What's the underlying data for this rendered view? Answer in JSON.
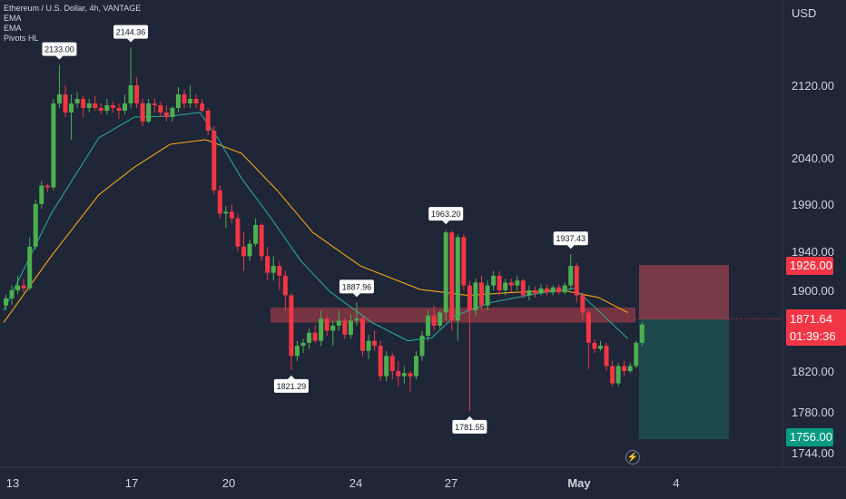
{
  "legend": {
    "symbol": "Ethereum / U.S. Dollar, 4h, VANTAGE",
    "indicators": [
      "EMA",
      "EMA",
      "Pivots HL"
    ]
  },
  "axis": {
    "currency": "USD",
    "y_ticks": [
      "2120.00",
      "2040.00",
      "1990.00",
      "1940.00",
      "1900.00",
      "1820.00",
      "1780.00",
      "1744.00"
    ],
    "x_ticks": [
      "13",
      "17",
      "20",
      "24",
      "27",
      "May",
      "4"
    ]
  },
  "price_labels": {
    "stop": "1926.00",
    "target": "1756.00",
    "current": "1871.64",
    "countdown": "01:39:36"
  },
  "colors": {
    "background": "#1e2637",
    "up": "#4caf50",
    "down": "#f23645",
    "ema_fast": "#26a69a",
    "ema_slow": "#f7a21b",
    "zone": "#e0474f",
    "stop_box": "#7d3a47",
    "target_box": "#1f4b4e"
  },
  "chart_data": {
    "type": "candlestick",
    "title": "Ethereum / U.S. Dollar, 4h, VANTAGE",
    "ylabel": "USD",
    "ylim": [
      1738,
      2160
    ],
    "x_labels": [
      "13",
      "17",
      "20",
      "24",
      "27",
      "May",
      "4"
    ],
    "y_ticks": [
      2120,
      2040,
      1990,
      1940,
      1900,
      1820,
      1780,
      1744
    ],
    "ohlc": [
      [
        1885,
        1896,
        1880,
        1892
      ],
      [
        1892,
        1905,
        1886,
        1900
      ],
      [
        1900,
        1915,
        1896,
        1905
      ],
      [
        1905,
        1912,
        1898,
        1902
      ],
      [
        1902,
        1955,
        1900,
        1945
      ],
      [
        1945,
        1995,
        1942,
        1990
      ],
      [
        1990,
        2015,
        1985,
        2010
      ],
      [
        2010,
        2012,
        2003,
        2008
      ],
      [
        2008,
        2105,
        2005,
        2100
      ],
      [
        2100,
        2133,
        2095,
        2110
      ],
      [
        2110,
        2120,
        2085,
        2090
      ],
      [
        2090,
        2110,
        2060,
        2100
      ],
      [
        2100,
        2112,
        2095,
        2105
      ],
      [
        2105,
        2108,
        2085,
        2095
      ],
      [
        2095,
        2105,
        2090,
        2100
      ],
      [
        2100,
        2108,
        2092,
        2095
      ],
      [
        2095,
        2100,
        2088,
        2092
      ],
      [
        2092,
        2105,
        2088,
        2098
      ],
      [
        2098,
        2102,
        2090,
        2095
      ],
      [
        2095,
        2100,
        2083,
        2092
      ],
      [
        2092,
        2110,
        2088,
        2100
      ],
      [
        2100,
        2144,
        2095,
        2120
      ],
      [
        2120,
        2125,
        2095,
        2100
      ],
      [
        2100,
        2105,
        2075,
        2080
      ],
      [
        2080,
        2105,
        2078,
        2100
      ],
      [
        2100,
        2106,
        2090,
        2098
      ],
      [
        2098,
        2102,
        2085,
        2090
      ],
      [
        2090,
        2098,
        2080,
        2085
      ],
      [
        2085,
        2097,
        2080,
        2095
      ],
      [
        2095,
        2118,
        2090,
        2110
      ],
      [
        2110,
        2115,
        2095,
        2100
      ],
      [
        2100,
        2120,
        2095,
        2105
      ],
      [
        2105,
        2110,
        2095,
        2100
      ],
      [
        2100,
        2105,
        2090,
        2092
      ],
      [
        2092,
        2095,
        2065,
        2070
      ],
      [
        2070,
        2075,
        2000,
        2005
      ],
      [
        2005,
        2010,
        1975,
        1980
      ],
      [
        1980,
        1988,
        1965,
        1982
      ],
      [
        1982,
        1990,
        1970,
        1975
      ],
      [
        1975,
        1980,
        1940,
        1945
      ],
      [
        1945,
        1960,
        1920,
        1935
      ],
      [
        1935,
        1952,
        1930,
        1948
      ],
      [
        1948,
        1975,
        1945,
        1968
      ],
      [
        1968,
        1970,
        1930,
        1935
      ],
      [
        1935,
        1945,
        1910,
        1918
      ],
      [
        1918,
        1935,
        1910,
        1925
      ],
      [
        1925,
        1930,
        1900,
        1915
      ],
      [
        1915,
        1920,
        1880,
        1895
      ],
      [
        1895,
        1897,
        1821,
        1835
      ],
      [
        1835,
        1850,
        1830,
        1845
      ],
      [
        1845,
        1852,
        1838,
        1848
      ],
      [
        1848,
        1862,
        1842,
        1858
      ],
      [
        1858,
        1866,
        1848,
        1850
      ],
      [
        1850,
        1880,
        1845,
        1872
      ],
      [
        1872,
        1876,
        1855,
        1860
      ],
      [
        1860,
        1870,
        1845,
        1865
      ],
      [
        1865,
        1880,
        1860,
        1870
      ],
      [
        1870,
        1872,
        1852,
        1856
      ],
      [
        1856,
        1876,
        1852,
        1870
      ],
      [
        1870,
        1888,
        1865,
        1872
      ],
      [
        1872,
        1875,
        1835,
        1840
      ],
      [
        1840,
        1856,
        1832,
        1850
      ],
      [
        1850,
        1860,
        1840,
        1845
      ],
      [
        1845,
        1850,
        1810,
        1815
      ],
      [
        1815,
        1840,
        1810,
        1835
      ],
      [
        1835,
        1838,
        1812,
        1820
      ],
      [
        1820,
        1830,
        1805,
        1815
      ],
      [
        1815,
        1825,
        1808,
        1818
      ],
      [
        1818,
        1820,
        1800,
        1815
      ],
      [
        1815,
        1840,
        1812,
        1835
      ],
      [
        1835,
        1860,
        1830,
        1855
      ],
      [
        1855,
        1880,
        1850,
        1875
      ],
      [
        1875,
        1885,
        1860,
        1865
      ],
      [
        1865,
        1880,
        1862,
        1878
      ],
      [
        1878,
        1963,
        1870,
        1960
      ],
      [
        1960,
        1962,
        1860,
        1870
      ],
      [
        1870,
        1958,
        1850,
        1955
      ],
      [
        1955,
        1958,
        1900,
        1905
      ],
      [
        1905,
        1910,
        1781,
        1880
      ],
      [
        1880,
        1912,
        1875,
        1908
      ],
      [
        1908,
        1915,
        1880,
        1885
      ],
      [
        1885,
        1910,
        1880,
        1905
      ],
      [
        1905,
        1920,
        1900,
        1915
      ],
      [
        1915,
        1920,
        1895,
        1900
      ],
      [
        1900,
        1912,
        1895,
        1908
      ],
      [
        1908,
        1912,
        1898,
        1905
      ],
      [
        1905,
        1915,
        1900,
        1910
      ],
      [
        1910,
        1912,
        1892,
        1895
      ],
      [
        1895,
        1905,
        1890,
        1900
      ],
      [
        1900,
        1904,
        1893,
        1897
      ],
      [
        1897,
        1906,
        1895,
        1902
      ],
      [
        1902,
        1906,
        1895,
        1898
      ],
      [
        1898,
        1905,
        1895,
        1903
      ],
      [
        1903,
        1906,
        1896,
        1898
      ],
      [
        1898,
        1908,
        1896,
        1905
      ],
      [
        1905,
        1937,
        1900,
        1925
      ],
      [
        1925,
        1928,
        1888,
        1895
      ],
      [
        1895,
        1898,
        1870,
        1878
      ],
      [
        1878,
        1880,
        1822,
        1848
      ],
      [
        1848,
        1852,
        1838,
        1842
      ],
      [
        1842,
        1850,
        1840,
        1845
      ],
      [
        1845,
        1848,
        1820,
        1825
      ],
      [
        1825,
        1830,
        1805,
        1808
      ],
      [
        1808,
        1828,
        1805,
        1825
      ],
      [
        1825,
        1830,
        1815,
        1820
      ],
      [
        1820,
        1828,
        1818,
        1825
      ],
      [
        1825,
        1850,
        1823,
        1848
      ],
      [
        1848,
        1868,
        1845,
        1866
      ]
    ],
    "ema_fast": [
      [
        0,
        1880
      ],
      [
        8,
        1980
      ],
      [
        16,
        2062
      ],
      [
        22,
        2085
      ],
      [
        28,
        2086
      ],
      [
        33,
        2090
      ],
      [
        36,
        2062
      ],
      [
        40,
        2018
      ],
      [
        45,
        1975
      ],
      [
        50,
        1930
      ],
      [
        55,
        1898
      ],
      [
        62,
        1868
      ],
      [
        68,
        1850
      ],
      [
        72,
        1853
      ],
      [
        76,
        1875
      ],
      [
        82,
        1888
      ],
      [
        90,
        1897
      ],
      [
        96,
        1902
      ],
      [
        100,
        1880
      ],
      [
        105,
        1852
      ]
    ],
    "ema_slow": [
      [
        0,
        1868
      ],
      [
        8,
        1935
      ],
      [
        16,
        2000
      ],
      [
        22,
        2030
      ],
      [
        28,
        2055
      ],
      [
        34,
        2060
      ],
      [
        40,
        2045
      ],
      [
        46,
        2005
      ],
      [
        52,
        1960
      ],
      [
        60,
        1925
      ],
      [
        70,
        1901
      ],
      [
        78,
        1895
      ],
      [
        86,
        1898
      ],
      [
        94,
        1900
      ],
      [
        100,
        1893
      ],
      [
        105,
        1878
      ]
    ],
    "pivots": [
      {
        "label": "2133.00",
        "bar": 9,
        "kind": "high"
      },
      {
        "label": "2144.36",
        "bar": 21,
        "kind": "high"
      },
      {
        "label": "1821.29",
        "bar": 48,
        "kind": "low"
      },
      {
        "label": "1887.96",
        "bar": 59,
        "kind": "high"
      },
      {
        "label": "1963.20",
        "bar": 74,
        "kind": "high"
      },
      {
        "label": "1781.55",
        "bar": 78,
        "kind": "low"
      },
      {
        "label": "1937.43",
        "bar": 95,
        "kind": "high"
      }
    ],
    "zone": [
      1868,
      1883
    ],
    "position": {
      "entry": 1871.64,
      "stop": 1926.0,
      "target": 1756.0
    }
  }
}
